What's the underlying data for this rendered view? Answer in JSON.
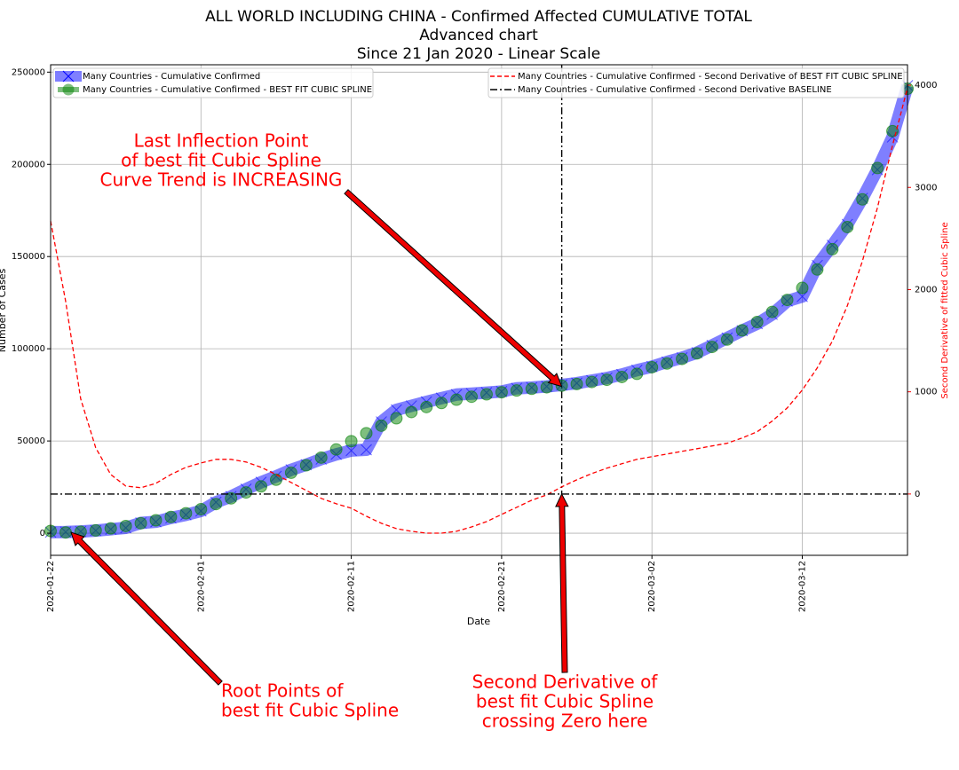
{
  "chart_data": {
    "type": "line",
    "title": [
      "ALL WORLD INCLUDING CHINA - Confirmed Affected CUMULATIVE TOTAL",
      "Advanced chart",
      "Since 21 Jan 2020 - Linear Scale"
    ],
    "x_label": "Date",
    "y_label": "Number of Cases",
    "y2_label": "Second Derivative of fitted Cubic Spline",
    "x": [
      "2020-01-22",
      "2020-01-23",
      "2020-01-24",
      "2020-01-25",
      "2020-01-26",
      "2020-01-27",
      "2020-01-28",
      "2020-01-29",
      "2020-01-30",
      "2020-01-31",
      "2020-02-01",
      "2020-02-02",
      "2020-02-03",
      "2020-02-04",
      "2020-02-05",
      "2020-02-06",
      "2020-02-07",
      "2020-02-08",
      "2020-02-09",
      "2020-02-10",
      "2020-02-11",
      "2020-02-12",
      "2020-02-13",
      "2020-02-14",
      "2020-02-15",
      "2020-02-16",
      "2020-02-17",
      "2020-02-18",
      "2020-02-19",
      "2020-02-20",
      "2020-02-21",
      "2020-02-22",
      "2020-02-23",
      "2020-02-24",
      "2020-02-25",
      "2020-02-26",
      "2020-02-27",
      "2020-02-28",
      "2020-02-29",
      "2020-03-01",
      "2020-03-02",
      "2020-03-03",
      "2020-03-04",
      "2020-03-05",
      "2020-03-06",
      "2020-03-07",
      "2020-03-08",
      "2020-03-09",
      "2020-03-10",
      "2020-03-11",
      "2020-03-12",
      "2020-03-13",
      "2020-03-14",
      "2020-03-15",
      "2020-03-16",
      "2020-03-17",
      "2020-03-18",
      "2020-03-19"
    ],
    "xlim": [
      "2020-01-22",
      "2020-03-19"
    ],
    "xticks": [
      "2020-01-22",
      "2020-02-01",
      "2020-02-11",
      "2020-02-21",
      "2020-03-02",
      "2020-03-12"
    ],
    "ylim": [
      -12000,
      254000
    ],
    "yticks": [
      0,
      50000,
      100000,
      150000,
      200000,
      250000
    ],
    "y2lim": [
      -600,
      4200
    ],
    "y2ticks": [
      0,
      1000,
      2000,
      3000,
      4000
    ],
    "grid": true,
    "vline_x": "2020-02-25",
    "series": [
      {
        "name": "Many Countries - Cumulative Confirmed",
        "color": "#0000ff",
        "marker": "x",
        "values": [
          555,
          654,
          941,
          1434,
          2118,
          2927,
          5578,
          6166,
          8234,
          9927,
          12038,
          16787,
          19881,
          23892,
          27635,
          30794,
          34391,
          37120,
          40150,
          42762,
          44802,
          45221,
          60368,
          66885,
          69030,
          71224,
          73258,
          75136,
          75639,
          76197,
          76819,
          78572,
          78958,
          79561,
          80406,
          81388,
          82746,
          84112,
          86011,
          88369,
          90306,
          92840,
          95120,
          97886,
          101801,
          105847,
          109821,
          113590,
          118620,
          125875,
          128352,
          145205,
          156101,
          167454,
          181574,
          197102,
          214821,
          242713
        ]
      },
      {
        "name": "Many Countries - Cumulative Confirmed - BEST FIT CUBIC SPLINE",
        "color": "#008000",
        "marker": "o",
        "values": [
          1200,
          400,
          800,
          1500,
          2600,
          3900,
          5400,
          7000,
          8800,
          10800,
          13000,
          15800,
          18900,
          22100,
          25400,
          29000,
          32800,
          36800,
          41000,
          45400,
          49900,
          54200,
          58300,
          62300,
          65700,
          68400,
          70600,
          72400,
          74000,
          75300,
          76400,
          77400,
          78300,
          79100,
          80000,
          80900,
          82000,
          83200,
          84700,
          86400,
          90000,
          92000,
          94500,
          97500,
          101000,
          105000,
          110000,
          114500,
          120000,
          126500,
          133000,
          143000,
          154000,
          166000,
          181000,
          198000,
          218000,
          241000
        ]
      },
      {
        "name": "Many Countries - Cumulative Confirmed - Second Derivative of BEST FIT CUBIC SPLINE",
        "color": "#ff0000",
        "axis": "y2",
        "linestyle": "dashed",
        "values": [
          2670,
          1887,
          930,
          452,
          191,
          78,
          61,
          104,
          191,
          261,
          304,
          339,
          339,
          313,
          261,
          191,
          113,
          35,
          -43,
          -96,
          -139,
          -217,
          -287,
          -339,
          -365,
          -383,
          -383,
          -365,
          -322,
          -270,
          -200,
          -130,
          -61,
          -9,
          70,
          139,
          200,
          252,
          296,
          339,
          365,
          391,
          417,
          443,
          470,
          496,
          548,
          609,
          713,
          843,
          1017,
          1235,
          1496,
          1843,
          2278,
          2800,
          3409,
          3974
        ]
      },
      {
        "name": "Many Countries - Cumulative Confirmed - Second Derivative BASELINE",
        "color": "#000000",
        "axis": "y2",
        "linestyle": "dashdot",
        "values": [
          0,
          0,
          0,
          0,
          0,
          0,
          0,
          0,
          0,
          0,
          0,
          0,
          0,
          0,
          0,
          0,
          0,
          0,
          0,
          0,
          0,
          0,
          0,
          0,
          0,
          0,
          0,
          0,
          0,
          0,
          0,
          0,
          0,
          0,
          0,
          0,
          0,
          0,
          0,
          0,
          0,
          0,
          0,
          0,
          0,
          0,
          0,
          0,
          0,
          0,
          0,
          0,
          0,
          0,
          0,
          0,
          0,
          0
        ]
      }
    ],
    "annotations": [
      {
        "lines": [
          "Last Inflection Point",
          "of best fit Cubic Spline",
          "Curve Trend is INCREASING"
        ]
      },
      {
        "lines": [
          "Root Points of",
          "best fit Cubic Spline"
        ]
      },
      {
        "lines": [
          "Second Derivative of",
          "best fit Cubic Spline",
          "crossing Zero here"
        ]
      }
    ]
  }
}
